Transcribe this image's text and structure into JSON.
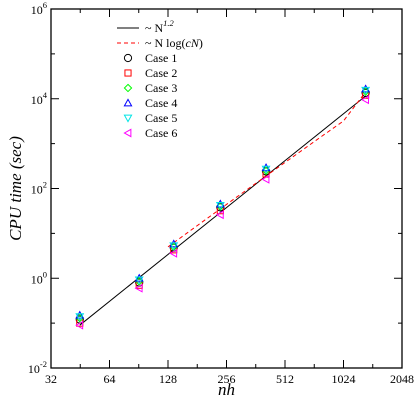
{
  "chart_data": {
    "type": "scatter",
    "title": "",
    "xlabel": "nh",
    "ylabel": "CPU time (sec)",
    "xscale": "log2",
    "yscale": "log10",
    "xlim": [
      32,
      2048
    ],
    "ylim": [
      0.01,
      1000000
    ],
    "x_ticks": [
      32,
      64,
      128,
      256,
      512,
      1024,
      2048
    ],
    "x_tick_labels": [
      "32",
      "64",
      "128",
      "256",
      "512",
      "1024",
      "2048"
    ],
    "y_ticks": [
      0.01,
      1,
      100,
      10000,
      1000000
    ],
    "y_tick_labels": [
      {
        "base": "10",
        "exp": "-2"
      },
      {
        "base": "10",
        "exp": "0"
      },
      {
        "base": "10",
        "exp": "2"
      },
      {
        "base": "10",
        "exp": "4"
      },
      {
        "base": "10",
        "exp": "6"
      }
    ],
    "grid": false,
    "legend_position": "top-left",
    "fits": [
      {
        "name_prefix": "~ N",
        "name_sup": "1.2",
        "name_suffix": "",
        "style": "solid",
        "color": "#000000",
        "x": [
          45,
          1331
        ],
        "y": [
          0.09,
          11500
        ]
      },
      {
        "name_prefix": "~ N log(",
        "name_sup": "",
        "name_suffix": "cN)",
        "style": "dashed",
        "color": "#ff0000",
        "x": [
          128,
          181,
          256,
          362,
          512,
          724,
          1024,
          1331
        ],
        "y": [
          5.0,
          14.9,
          44.2,
          130,
          381,
          1110,
          3200,
          14200
        ]
      }
    ],
    "series": [
      {
        "name": "Case 1",
        "marker": "circle",
        "color": "#000000",
        "x": [
          45,
          91,
          137,
          238,
          409,
          1331
        ],
        "y": [
          0.12,
          0.8,
          4.8,
          38,
          240,
          13500
        ]
      },
      {
        "name": "Case 2",
        "marker": "square",
        "color": "#ff0000",
        "x": [
          45,
          91,
          137,
          238,
          409,
          1331
        ],
        "y": [
          0.1,
          0.7,
          4.3,
          32,
          210,
          12000
        ]
      },
      {
        "name": "Case 3",
        "marker": "diamond",
        "color": "#00ff00",
        "x": [
          45,
          91,
          137,
          238,
          409,
          1331
        ],
        "y": [
          0.13,
          0.85,
          5.0,
          40,
          250,
          14500
        ]
      },
      {
        "name": "Case 4",
        "marker": "triangle-up",
        "color": "#0000ff",
        "x": [
          45,
          91,
          137,
          238,
          409,
          1331
        ],
        "y": [
          0.15,
          1.0,
          5.8,
          45,
          290,
          16500
        ]
      },
      {
        "name": "Case 5",
        "marker": "triangle-down",
        "color": "#00e5e5",
        "x": [
          45,
          91,
          137,
          238,
          409,
          1331
        ],
        "y": [
          0.14,
          0.92,
          5.3,
          42,
          270,
          15500
        ]
      },
      {
        "name": "Case 6",
        "marker": "triangle-left",
        "color": "#ff00ff",
        "x": [
          45,
          91,
          137,
          238,
          409,
          1331
        ],
        "y": [
          0.09,
          0.6,
          3.6,
          26,
          160,
          9500
        ]
      }
    ]
  }
}
